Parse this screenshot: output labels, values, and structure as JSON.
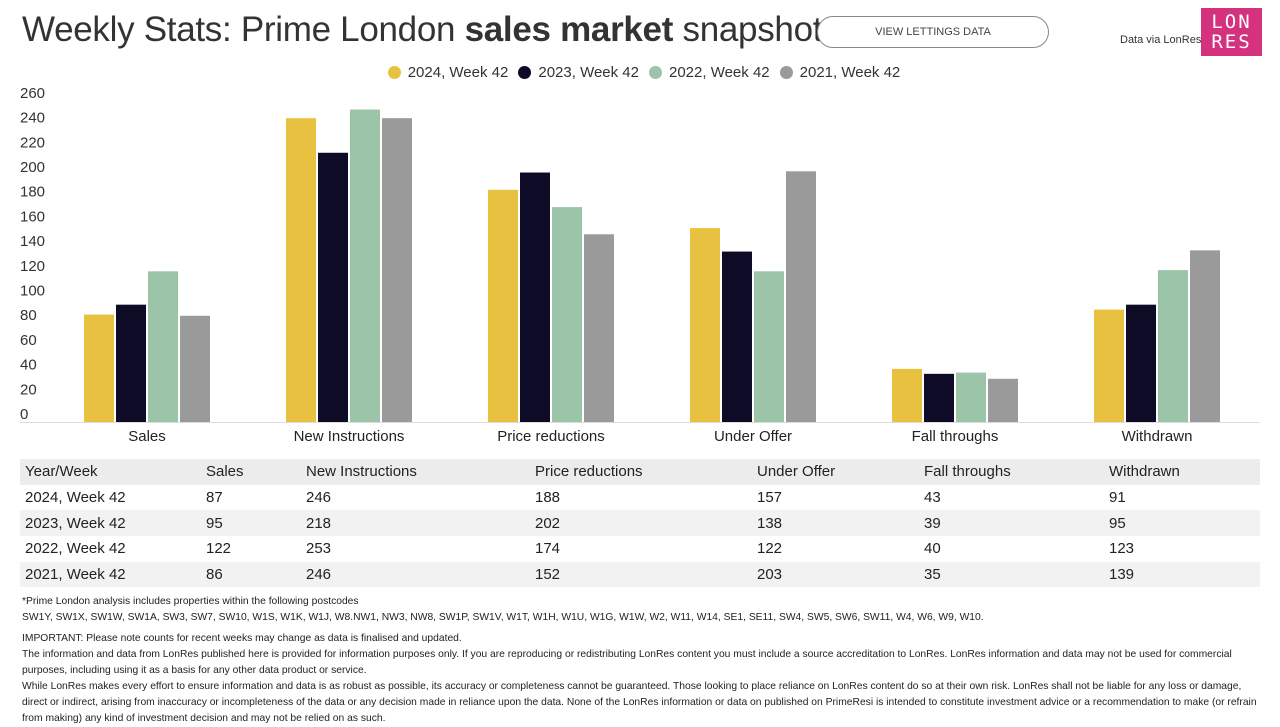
{
  "header": {
    "title_pre": "Weekly Stats: Prime London ",
    "title_bold": "sales market",
    "title_post": " snapshot",
    "button": "VIEW LETTINGS DATA",
    "data_via": "Data via LonRes",
    "logo_line1": "LON",
    "logo_line2": "RES"
  },
  "colors": {
    "s2024": "#E8C140",
    "s2023": "#0D0B26",
    "s2022": "#9BC4A8",
    "s2021": "#9A9A9A",
    "logo": "#d4317f"
  },
  "chart_data": {
    "type": "bar",
    "categories": [
      "Sales",
      "New Instructions",
      "Price reductions",
      "Under Offer",
      "Fall throughs",
      "Withdrawn"
    ],
    "series": [
      {
        "name": "2024, Week 42",
        "values": [
          87,
          246,
          188,
          157,
          43,
          91
        ]
      },
      {
        "name": "2023, Week 42",
        "values": [
          95,
          218,
          202,
          138,
          39,
          95
        ]
      },
      {
        "name": "2022, Week 42",
        "values": [
          122,
          253,
          174,
          122,
          40,
          123
        ]
      },
      {
        "name": "2021, Week 42",
        "values": [
          86,
          246,
          152,
          203,
          35,
          139
        ]
      }
    ],
    "yticks": [
      "0",
      "20",
      "40",
      "60",
      "80",
      "100",
      "120",
      "140",
      "160",
      "180",
      "200",
      "220",
      "240",
      "260"
    ],
    "ylim": [
      0,
      260
    ],
    "legend": "top-center",
    "grid": false
  },
  "table": {
    "headers": [
      "Year/Week",
      "Sales",
      "New Instructions",
      "Price reductions",
      "Under Offer",
      "Fall throughs",
      "Withdrawn"
    ],
    "rows": [
      [
        "2024, Week 42",
        "87",
        "246",
        "188",
        "157",
        "43",
        "91"
      ],
      [
        "2023, Week 42",
        "95",
        "218",
        "202",
        "138",
        "39",
        "95"
      ],
      [
        "2022, Week 42",
        "122",
        "253",
        "174",
        "122",
        "40",
        "123"
      ],
      [
        "2021, Week 42",
        "86",
        "246",
        "152",
        "203",
        "35",
        "139"
      ]
    ]
  },
  "notes": {
    "postcodes_intro": "*Prime London analysis includes properties within the following postcodes",
    "postcodes": "SW1Y, SW1X, SW1W, SW1A, SW3, SW7, SW10, W1S, W1K, W1J, W8.NW1, NW3, NW8, SW1P, SW1V, W1T, W1H, W1U, W1G, W1W, W2, W11, W14, SE1, SE11, SW4, SW5, SW6, SW11, W4, W6, W9, W10.",
    "important": "IMPORTANT: Please note counts for recent weeks may change as data is finalised and updated.",
    "info": "The information and data from LonRes published here is provided for information purposes only. If you are reproducing or redistributing LonRes content you must include a source accreditation to LonRes. LonRes information and data may not be used for commercial purposes, including using it as a basis for any other data product or service.",
    "disclaimer": "While LonRes makes every effort to ensure information and data is as robust as possible, its accuracy or completeness cannot be guaranteed. Those looking to place reliance on LonRes content do so at their own risk. LonRes shall not be liable for any loss or damage, direct or indirect, arising from inaccuracy or incompleteness of the data or any decision made in reliance upon the data. None of the LonRes information or data on published on PrimeResi is intended to constitute investment advice or a recommendation to make (or refrain from making) any kind of investment decision and may not be relied on as such."
  }
}
